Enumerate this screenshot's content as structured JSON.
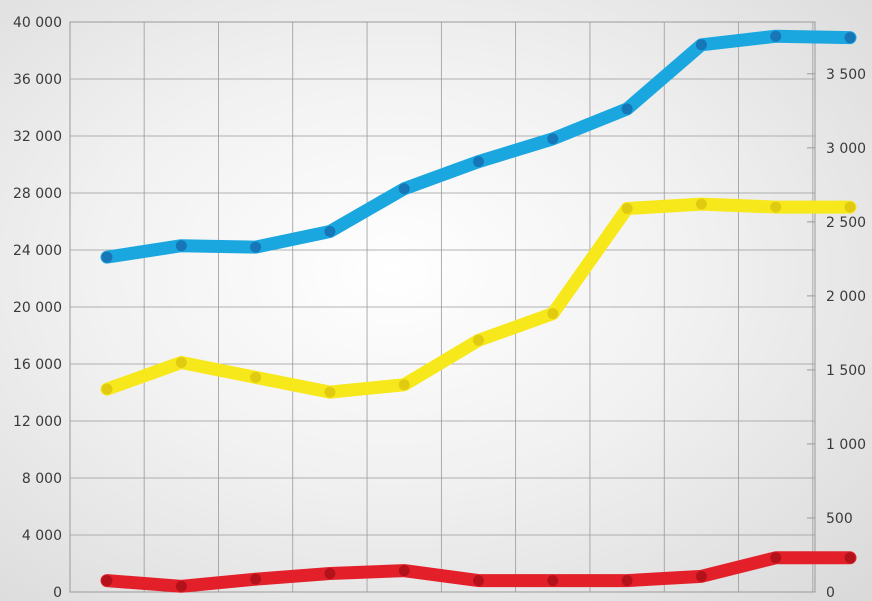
{
  "chart_data": {
    "type": "line",
    "title": "",
    "xlabel": "",
    "ylabel": "",
    "grid": true,
    "x": [
      1,
      2,
      3,
      4,
      5,
      6,
      7,
      8,
      9,
      10,
      11
    ],
    "ylim_left": [
      0,
      40000
    ],
    "yticks_left": [
      "0",
      "4 000",
      "8 000",
      "12 000",
      "16 000",
      "20 000",
      "24 000",
      "28 000",
      "32 000",
      "36 000",
      "40 000"
    ],
    "ylim_right": [
      0,
      3850
    ],
    "yticks_right": [
      "0",
      "500",
      "1 000",
      "1 500",
      "2 000",
      "2 500",
      "3 000",
      "3 500"
    ],
    "series": [
      {
        "axis": "left",
        "color": "#1aa7e0",
        "values": [
          23500,
          24300,
          24200,
          25300,
          28300,
          30200,
          31800,
          33900,
          38400,
          39000,
          38900
        ]
      },
      {
        "axis": "right",
        "color": "#f7e81c",
        "values": [
          1370,
          1550,
          1450,
          1350,
          1400,
          1700,
          1880,
          2590,
          2620,
          2600,
          2600
        ]
      },
      {
        "axis": "left",
        "color": "#e3202a",
        "values": [
          800,
          400,
          900,
          1300,
          1500,
          800,
          800,
          800,
          1100,
          2400,
          2400
        ]
      }
    ],
    "colors": {
      "grid": "#9a9a9a",
      "tick_text": "#3a3a3a",
      "marker_blue": "#1676b8",
      "marker_yellow": "#e0cb10",
      "marker_red": "#b3121a"
    }
  }
}
